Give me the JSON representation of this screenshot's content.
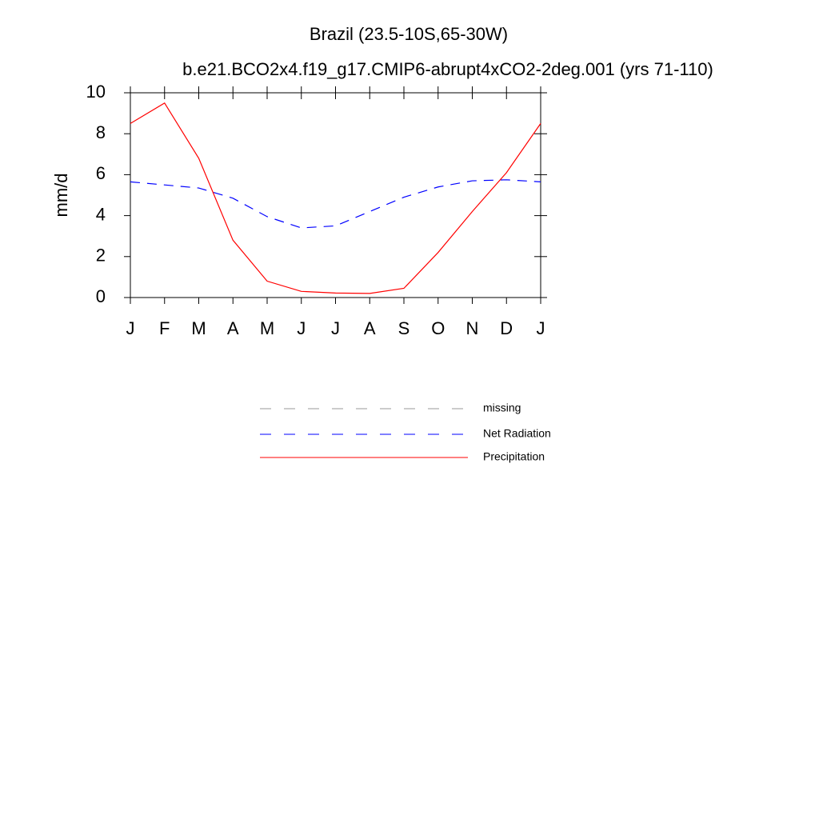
{
  "chart_data": {
    "type": "line",
    "title": "Brazil (23.5-10S,65-30W)",
    "subtitle": "b.e21.BCO2x4.f19_g17.CMIP6-abrupt4xCO2-2deg.001 (yrs 71-110)",
    "y_label": "mm/d",
    "categories": [
      "J",
      "F",
      "M",
      "A",
      "M",
      "J",
      "J",
      "A",
      "S",
      "O",
      "N",
      "D",
      "J"
    ],
    "series": [
      {
        "name": "missing",
        "color": "#999999",
        "dash": true,
        "values": [
          null,
          null,
          null,
          null,
          null,
          null,
          null,
          null,
          null,
          null,
          null,
          null,
          null
        ]
      },
      {
        "name": "Net Radiation",
        "color": "#0000ff",
        "dash": true,
        "values": [
          5.65,
          5.5,
          5.35,
          4.85,
          3.95,
          3.4,
          3.5,
          4.2,
          4.9,
          5.4,
          5.7,
          5.75,
          5.65
        ]
      },
      {
        "name": "Precipitation",
        "color": "#ff0000",
        "dash": false,
        "values": [
          8.5,
          9.5,
          6.8,
          2.8,
          0.8,
          0.3,
          0.22,
          0.2,
          0.45,
          2.2,
          4.2,
          6.1,
          8.5
        ]
      }
    ],
    "ylim": [
      0,
      10
    ],
    "yticks": [
      0,
      2,
      4,
      6,
      8,
      10
    ],
    "grid": false
  }
}
